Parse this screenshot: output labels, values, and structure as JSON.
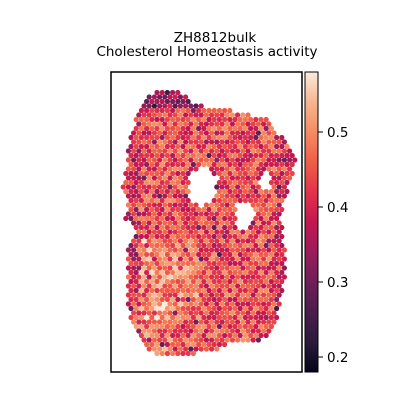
{
  "chart_data": {
    "type": "heatmap",
    "subtype": "spatial-spot-map",
    "title_line1": "ZH8812bulk",
    "title_line2": "Cholesterol Homeostasis activity",
    "xlabel": "",
    "ylabel": "",
    "colorbar": {
      "label": "",
      "range": [
        0.18,
        0.58
      ],
      "ticks": [
        0.2,
        0.3,
        0.4,
        0.5
      ],
      "tick_labels": [
        "0.2",
        "0.3",
        "0.4",
        "0.5"
      ],
      "colormap": "rocket"
    },
    "value_summary": {
      "typical": 0.45,
      "min_shown": 0.19,
      "max_shown": 0.57
    },
    "grid": false,
    "legend": "colorbar-right"
  }
}
